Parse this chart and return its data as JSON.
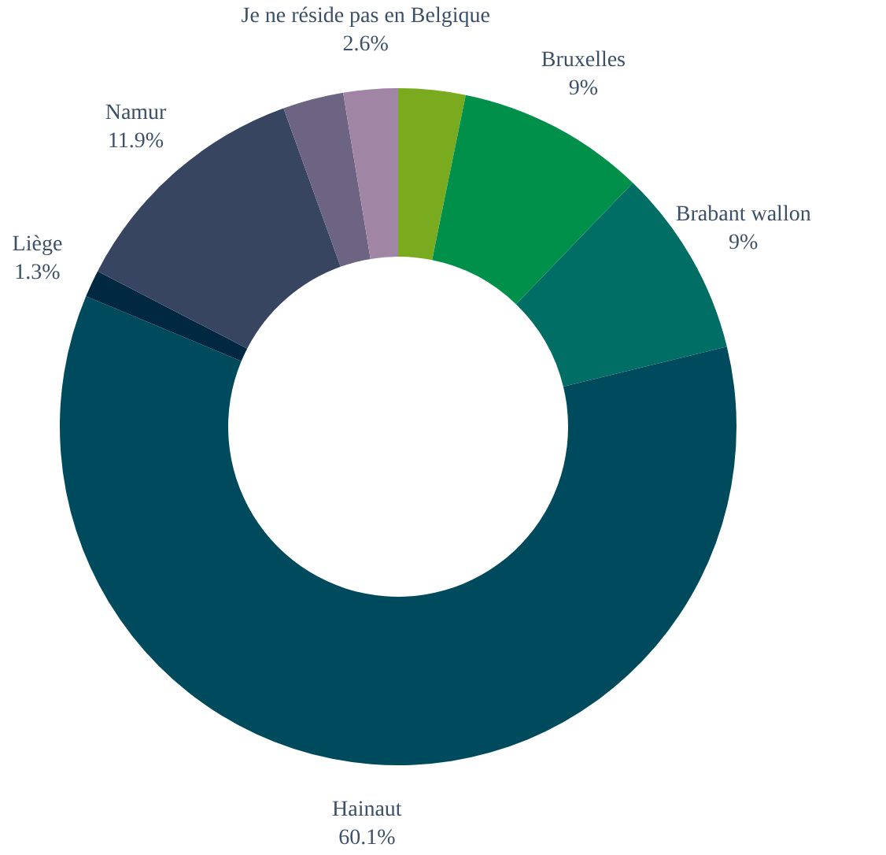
{
  "chart_data": {
    "type": "donut",
    "categories": [
      null,
      "Bruxelles",
      "Brabant wallon",
      "Hainaut",
      "Liège",
      "Namur",
      null,
      "Je ne réside pas en Belgique"
    ],
    "values": [
      3.2,
      9,
      9,
      60.1,
      1.3,
      11.9,
      2.9,
      2.6
    ],
    "value_labels": [
      null,
      "9%",
      "9%",
      "60.1%",
      "1.3%",
      "11.9%",
      null,
      "2.6%"
    ],
    "colors": [
      "#7aab1e",
      "#00904a",
      "#006e64",
      "#004a5e",
      "#002840",
      "#384561",
      "#6c6482",
      "#a085a5"
    ]
  }
}
